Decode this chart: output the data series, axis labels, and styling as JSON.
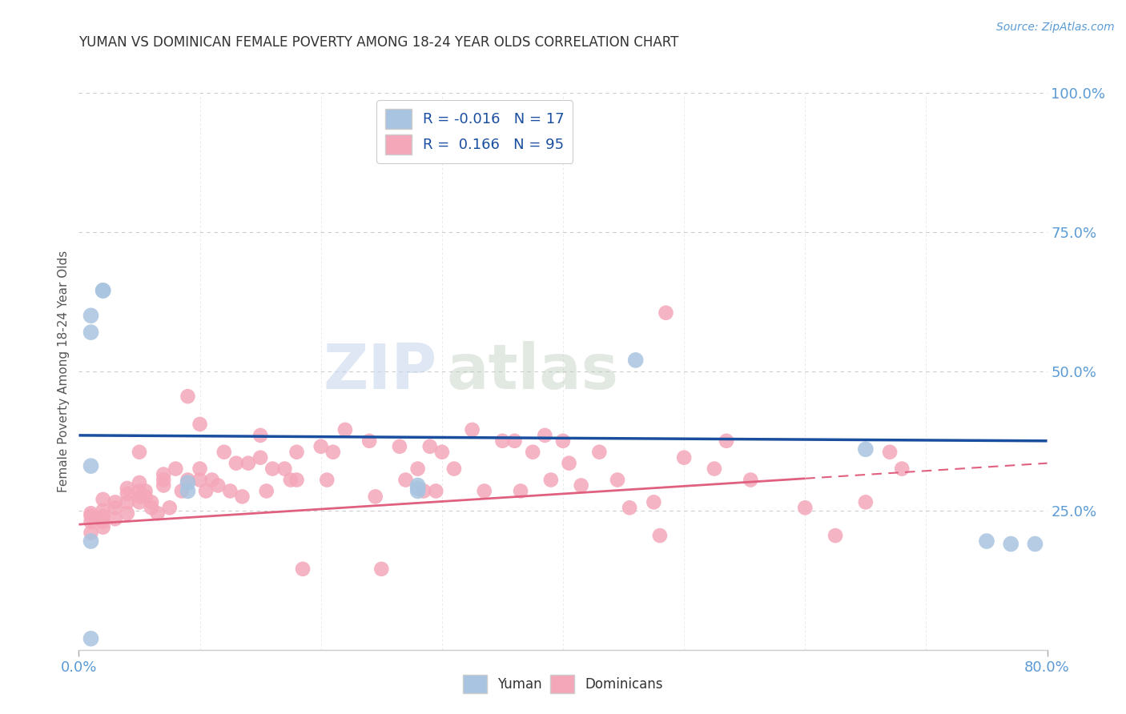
{
  "title": "YUMAN VS DOMINICAN FEMALE POVERTY AMONG 18-24 YEAR OLDS CORRELATION CHART",
  "source": "Source: ZipAtlas.com",
  "ylabel": "Female Poverty Among 18-24 Year Olds",
  "xlim": [
    0.0,
    0.8
  ],
  "ylim": [
    0.0,
    1.0
  ],
  "yticks": [
    0.25,
    0.5,
    0.75,
    1.0
  ],
  "yticklabels": [
    "25.0%",
    "50.0%",
    "75.0%",
    "100.0%"
  ],
  "legend_r_yuman": "-0.016",
  "legend_n_yuman": "17",
  "legend_r_dominicans": "0.166",
  "legend_n_dominicans": "95",
  "yuman_color": "#a8c4e0",
  "dominicans_color": "#f4a7b9",
  "trendline_yuman_color": "#1a4fa0",
  "trendline_dominicans_color": "#e06080",
  "watermark_zip": "ZIP",
  "watermark_atlas": "atlas",
  "background_color": "#ffffff",
  "trendline_yuman_x0": 0.0,
  "trendline_yuman_y0": 0.385,
  "trendline_yuman_x1": 0.8,
  "trendline_yuman_y1": 0.375,
  "trendline_dom_x0": 0.0,
  "trendline_dom_y0": 0.225,
  "trendline_dom_x1": 0.8,
  "trendline_dom_y1": 0.335,
  "yuman_x": [
    0.01,
    0.01,
    0.01,
    0.01,
    0.01,
    0.02,
    0.02,
    0.09,
    0.09,
    0.28,
    0.28,
    0.28,
    0.46,
    0.65,
    0.75,
    0.77,
    0.79
  ],
  "yuman_y": [
    0.6,
    0.57,
    0.33,
    0.195,
    0.02,
    0.645,
    0.645,
    0.285,
    0.3,
    0.295,
    0.285,
    0.29,
    0.52,
    0.36,
    0.195,
    0.19,
    0.19
  ],
  "dominicans_x": [
    0.01,
    0.01,
    0.01,
    0.01,
    0.02,
    0.02,
    0.02,
    0.02,
    0.02,
    0.03,
    0.03,
    0.03,
    0.04,
    0.04,
    0.04,
    0.04,
    0.05,
    0.05,
    0.05,
    0.05,
    0.05,
    0.055,
    0.055,
    0.06,
    0.06,
    0.065,
    0.07,
    0.07,
    0.07,
    0.075,
    0.08,
    0.085,
    0.09,
    0.09,
    0.1,
    0.1,
    0.1,
    0.105,
    0.11,
    0.115,
    0.12,
    0.125,
    0.13,
    0.135,
    0.14,
    0.15,
    0.15,
    0.155,
    0.16,
    0.17,
    0.175,
    0.18,
    0.18,
    0.185,
    0.2,
    0.205,
    0.21,
    0.22,
    0.24,
    0.245,
    0.25,
    0.265,
    0.27,
    0.28,
    0.285,
    0.29,
    0.295,
    0.3,
    0.31,
    0.325,
    0.335,
    0.35,
    0.36,
    0.365,
    0.375,
    0.385,
    0.39,
    0.4,
    0.405,
    0.415,
    0.43,
    0.445,
    0.455,
    0.475,
    0.485,
    0.5,
    0.525,
    0.535,
    0.555,
    0.48,
    0.6,
    0.625,
    0.65,
    0.67,
    0.68
  ],
  "dominicans_y": [
    0.245,
    0.24,
    0.23,
    0.21,
    0.27,
    0.25,
    0.24,
    0.23,
    0.22,
    0.265,
    0.255,
    0.235,
    0.29,
    0.28,
    0.265,
    0.245,
    0.355,
    0.3,
    0.285,
    0.275,
    0.265,
    0.285,
    0.275,
    0.265,
    0.255,
    0.245,
    0.315,
    0.305,
    0.295,
    0.255,
    0.325,
    0.285,
    0.455,
    0.305,
    0.405,
    0.325,
    0.305,
    0.285,
    0.305,
    0.295,
    0.355,
    0.285,
    0.335,
    0.275,
    0.335,
    0.385,
    0.345,
    0.285,
    0.325,
    0.325,
    0.305,
    0.355,
    0.305,
    0.145,
    0.365,
    0.305,
    0.355,
    0.395,
    0.375,
    0.275,
    0.145,
    0.365,
    0.305,
    0.325,
    0.285,
    0.365,
    0.285,
    0.355,
    0.325,
    0.395,
    0.285,
    0.375,
    0.375,
    0.285,
    0.355,
    0.385,
    0.305,
    0.375,
    0.335,
    0.295,
    0.355,
    0.305,
    0.255,
    0.265,
    0.605,
    0.345,
    0.325,
    0.375,
    0.305,
    0.205,
    0.255,
    0.205,
    0.265,
    0.355,
    0.325
  ]
}
